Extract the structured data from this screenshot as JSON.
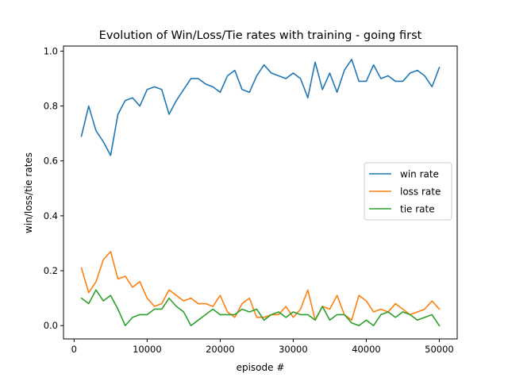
{
  "chart_data": {
    "type": "line",
    "title": "Evolution of Win/Loss/Tie rates with training - going first",
    "xlabel": "episode #",
    "ylabel": "win/loss/tie rates",
    "xlim": [
      -1450,
      52450
    ],
    "ylim": [
      -0.0485,
      1.0185
    ],
    "xticks": [
      0,
      10000,
      20000,
      30000,
      40000,
      50000
    ],
    "yticks": [
      0.0,
      0.2,
      0.4,
      0.6,
      0.8,
      1.0
    ],
    "xtick_labels": [
      "0",
      "10000",
      "20000",
      "30000",
      "40000",
      "50000"
    ],
    "ytick_labels": [
      "0.0",
      "0.2",
      "0.4",
      "0.6",
      "0.8",
      "1.0"
    ],
    "legend_position": "center-right",
    "x": [
      1000,
      2000,
      3000,
      4000,
      5000,
      6000,
      7000,
      8000,
      9000,
      10000,
      11000,
      12000,
      13000,
      14000,
      15000,
      16000,
      17000,
      18000,
      19000,
      20000,
      21000,
      22000,
      23000,
      24000,
      25000,
      26000,
      27000,
      28000,
      29000,
      30000,
      31000,
      32000,
      33000,
      34000,
      35000,
      36000,
      37000,
      38000,
      39000,
      40000,
      41000,
      42000,
      43000,
      44000,
      45000,
      46000,
      47000,
      48000,
      49000,
      50000
    ],
    "series": [
      {
        "name": "win rate",
        "color": "#1f77b4",
        "values": [
          0.69,
          0.8,
          0.71,
          0.67,
          0.62,
          0.77,
          0.82,
          0.83,
          0.8,
          0.86,
          0.87,
          0.86,
          0.77,
          0.82,
          0.86,
          0.9,
          0.9,
          0.88,
          0.87,
          0.85,
          0.91,
          0.93,
          0.86,
          0.85,
          0.91,
          0.95,
          0.92,
          0.91,
          0.9,
          0.92,
          0.9,
          0.83,
          0.96,
          0.86,
          0.92,
          0.85,
          0.93,
          0.97,
          0.89,
          0.89,
          0.95,
          0.9,
          0.91,
          0.89,
          0.89,
          0.92,
          0.93,
          0.91,
          0.87,
          0.94
        ]
      },
      {
        "name": "loss rate",
        "color": "#ff7f0e",
        "values": [
          0.21,
          0.12,
          0.16,
          0.24,
          0.27,
          0.17,
          0.18,
          0.14,
          0.16,
          0.1,
          0.07,
          0.08,
          0.13,
          0.11,
          0.09,
          0.1,
          0.08,
          0.08,
          0.07,
          0.11,
          0.05,
          0.03,
          0.08,
          0.1,
          0.03,
          0.03,
          0.04,
          0.04,
          0.07,
          0.03,
          0.06,
          0.13,
          0.02,
          0.07,
          0.06,
          0.11,
          0.04,
          0.02,
          0.11,
          0.09,
          0.05,
          0.06,
          0.05,
          0.08,
          0.06,
          0.04,
          0.05,
          0.06,
          0.09,
          0.06
        ]
      },
      {
        "name": "tie rate",
        "color": "#2ca02c",
        "values": [
          0.1,
          0.08,
          0.13,
          0.09,
          0.11,
          0.06,
          0.0,
          0.03,
          0.04,
          0.04,
          0.06,
          0.06,
          0.1,
          0.07,
          0.05,
          0.0,
          0.02,
          0.04,
          0.06,
          0.04,
          0.04,
          0.04,
          0.06,
          0.05,
          0.06,
          0.02,
          0.04,
          0.05,
          0.03,
          0.05,
          0.04,
          0.04,
          0.02,
          0.07,
          0.02,
          0.04,
          0.04,
          0.01,
          0.0,
          0.02,
          0.0,
          0.04,
          0.05,
          0.03,
          0.05,
          0.04,
          0.02,
          0.03,
          0.04,
          0.0
        ]
      }
    ]
  }
}
